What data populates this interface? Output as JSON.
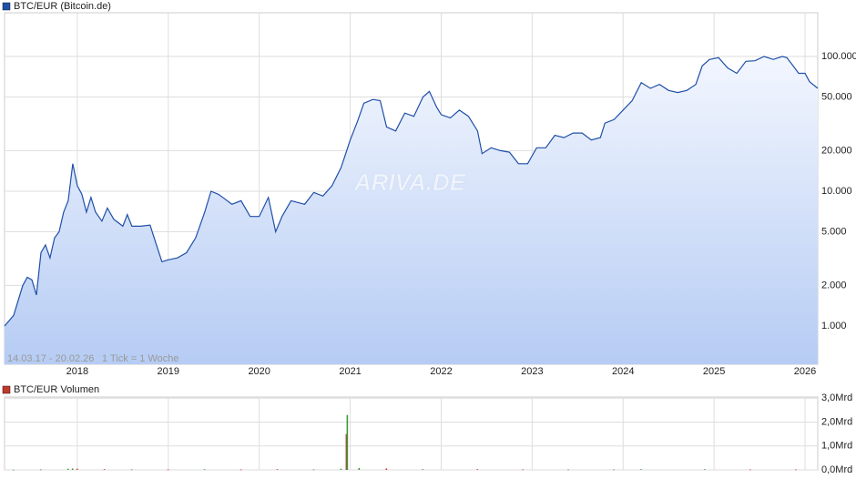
{
  "chart_data": [
    {
      "type": "line",
      "legend": "BTC/EUR (Bitcoin.de)",
      "color": "#1f4fa8",
      "range_label": "14.03.17 - 20.02.26",
      "tick_label": "1 Tick = 1 Woche",
      "watermark": "ARIVA.DE",
      "log_scale": true,
      "grid": true,
      "x": [
        2017.2,
        2017.3,
        2017.4,
        2017.45,
        2017.5,
        2017.55,
        2017.6,
        2017.65,
        2017.7,
        2017.75,
        2017.8,
        2017.85,
        2017.9,
        2017.95,
        2018.0,
        2018.05,
        2018.1,
        2018.15,
        2018.2,
        2018.27,
        2018.33,
        2018.4,
        2018.5,
        2018.55,
        2018.6,
        2018.7,
        2018.8,
        2018.87,
        2018.93,
        2019.0,
        2019.1,
        2019.2,
        2019.3,
        2019.4,
        2019.47,
        2019.55,
        2019.6,
        2019.7,
        2019.8,
        2019.9,
        2020.0,
        2020.1,
        2020.18,
        2020.25,
        2020.35,
        2020.5,
        2020.6,
        2020.7,
        2020.8,
        2020.9,
        2021.0,
        2021.08,
        2021.15,
        2021.25,
        2021.33,
        2021.4,
        2021.5,
        2021.6,
        2021.7,
        2021.8,
        2021.87,
        2021.95,
        2022.0,
        2022.1,
        2022.2,
        2022.3,
        2022.4,
        2022.45,
        2022.55,
        2022.65,
        2022.75,
        2022.85,
        2022.95,
        2023.05,
        2023.15,
        2023.25,
        2023.35,
        2023.45,
        2023.55,
        2023.65,
        2023.75,
        2023.8,
        2023.9,
        2024.0,
        2024.1,
        2024.2,
        2024.3,
        2024.4,
        2024.5,
        2024.6,
        2024.7,
        2024.8,
        2024.87,
        2024.95,
        2025.05,
        2025.15,
        2025.25,
        2025.35,
        2025.45,
        2025.55,
        2025.65,
        2025.75,
        2025.8,
        2025.87,
        2025.93,
        2026.0,
        2026.05,
        2026.14
      ],
      "values": [
        1000,
        1200,
        2000,
        2300,
        2200,
        1700,
        3500,
        4000,
        3200,
        4500,
        5000,
        7000,
        8500,
        16000,
        11000,
        9500,
        7000,
        9000,
        7000,
        6000,
        7500,
        6200,
        5500,
        6700,
        5500,
        5500,
        5600,
        4000,
        3000,
        3100,
        3200,
        3500,
        4500,
        7000,
        10000,
        9500,
        9000,
        8000,
        8500,
        6500,
        6500,
        9000,
        5000,
        6500,
        8500,
        8000,
        9800,
        9200,
        11000,
        15000,
        24000,
        33000,
        45000,
        48000,
        47000,
        30000,
        28000,
        38000,
        36000,
        50000,
        55000,
        42000,
        37000,
        35000,
        40000,
        36000,
        28000,
        19000,
        21000,
        20000,
        19500,
        16000,
        16000,
        21000,
        21000,
        26000,
        25000,
        27000,
        27000,
        24000,
        25000,
        32000,
        34000,
        40000,
        47000,
        64000,
        58000,
        62000,
        56000,
        54000,
        56000,
        62000,
        85000,
        95000,
        98000,
        82000,
        75000,
        92000,
        93000,
        100000,
        95000,
        100000,
        98000,
        85000,
        75000,
        75000,
        65000,
        58000
      ],
      "xlim": [
        2017.2,
        2026.14
      ],
      "xticks": [
        2018,
        2019,
        2020,
        2021,
        2022,
        2023,
        2024,
        2025,
        2026
      ],
      "ylim": [
        520,
        211000
      ],
      "yticks": [
        {
          "value": 1000,
          "label": "1.000"
        },
        {
          "value": 2000,
          "label": "2.000"
        },
        {
          "value": 5000,
          "label": "5.000"
        },
        {
          "value": 10000,
          "label": "10.000"
        },
        {
          "value": 20000,
          "label": "20.000"
        },
        {
          "value": 50000,
          "label": "50.000"
        },
        {
          "value": 100000,
          "label": "100.000"
        }
      ]
    },
    {
      "type": "bar",
      "legend": "BTC/EUR Volumen",
      "color": "#c0392b",
      "grid": true,
      "x": [
        2017.3,
        2017.6,
        2017.9,
        2017.95,
        2018.0,
        2018.3,
        2018.6,
        2019.0,
        2019.4,
        2019.8,
        2020.2,
        2020.6,
        2020.9,
        2020.96,
        2020.97,
        2021.1,
        2021.4,
        2021.8,
        2022.4,
        2022.9,
        2023.4,
        2023.9,
        2024.2,
        2024.9,
        2025.4,
        2025.9
      ],
      "values": [
        0.01,
        0.02,
        0.05,
        0.06,
        0.05,
        0.03,
        0.02,
        0.02,
        0.03,
        0.02,
        0.03,
        0.02,
        0.05,
        1.5,
        2.3,
        0.08,
        0.06,
        0.03,
        0.03,
        0.02,
        0.02,
        0.02,
        0.03,
        0.03,
        0.02,
        0.02
      ],
      "colors": [
        "#3a9a3a",
        "#3a9a3a",
        "#3a9a3a",
        "#3a9a3a",
        "#c0392b",
        "#c0392b",
        "#3a9a3a",
        "#c0392b",
        "#3a9a3a",
        "#c0392b",
        "#c0392b",
        "#3a9a3a",
        "#3a9a3a",
        "#c0392b",
        "#3a9a3a",
        "#3a9a3a",
        "#c0392b",
        "#3a9a3a",
        "#c0392b",
        "#c0392b",
        "#3a9a3a",
        "#3a9a3a",
        "#3a9a3a",
        "#3a9a3a",
        "#c0392b",
        "#c0392b"
      ],
      "xlim": [
        2017.2,
        2026.14
      ],
      "xticks": [
        2018,
        2019,
        2020,
        2021,
        2022,
        2023,
        2024,
        2025,
        2026
      ],
      "ylim": [
        0,
        3.05
      ],
      "yticks": [
        {
          "value": 0,
          "label": "0,0Mrd"
        },
        {
          "value": 1,
          "label": "1,0Mrd"
        },
        {
          "value": 2,
          "label": "2,0Mrd"
        },
        {
          "value": 3,
          "label": "3,0Mrd"
        }
      ]
    }
  ]
}
